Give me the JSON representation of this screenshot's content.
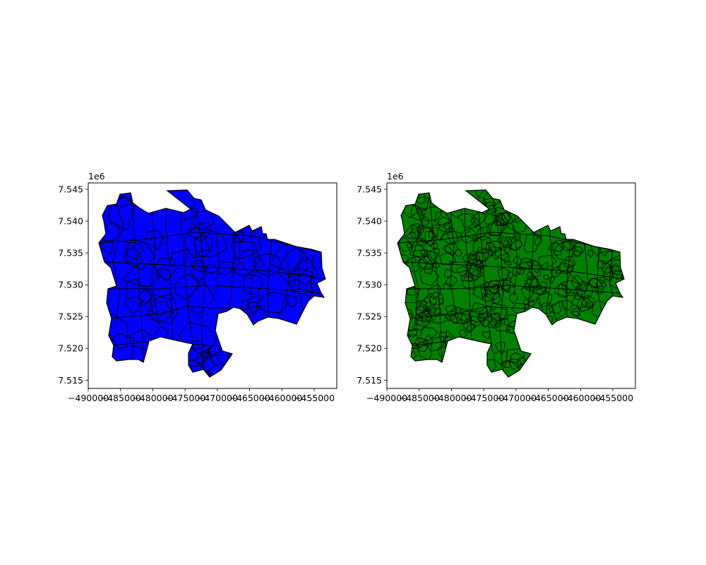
{
  "figure": {
    "background": "#ffffff"
  },
  "panels": [
    {
      "id": "left",
      "fill": "#0000ff",
      "edge": "#000000",
      "xlim": [
        -490000,
        -451500
      ],
      "ylim": [
        7513700,
        7546000
      ],
      "x_ticks": [
        -490000,
        -485000,
        -480000,
        -475000,
        -470000,
        -465000,
        -460000,
        -455000
      ],
      "x_tick_labels": [
        "−490000",
        "−485000",
        "−480000",
        "−475000",
        "−470000",
        "−465000",
        "−460000",
        "−455000"
      ],
      "y_ticks": [
        7515000,
        7520000,
        7525000,
        7530000,
        7535000,
        7540000,
        7545000
      ],
      "y_tick_labels": [
        "7.515",
        "7.520",
        "7.525",
        "7.530",
        "7.535",
        "7.540",
        "7.545"
      ],
      "y_offset_label": "1e6"
    },
    {
      "id": "right",
      "fill": "#008000",
      "edge": "#000000",
      "xlim": [
        -490000,
        -451500
      ],
      "ylim": [
        7513700,
        7546000
      ],
      "x_ticks": [
        -490000,
        -485000,
        -480000,
        -475000,
        -470000,
        -465000,
        -460000,
        -455000
      ],
      "x_tick_labels": [
        "−490000",
        "−485000",
        "−480000",
        "−475000",
        "−470000",
        "−465000",
        "−460000",
        "−455000"
      ],
      "y_ticks": [
        7515000,
        7520000,
        7525000,
        7530000,
        7535000,
        7540000,
        7545000
      ],
      "y_tick_labels": [
        "7.515",
        "7.520",
        "7.525",
        "7.530",
        "7.535",
        "7.540",
        "7.545"
      ],
      "y_offset_label": "1e6"
    }
  ]
}
